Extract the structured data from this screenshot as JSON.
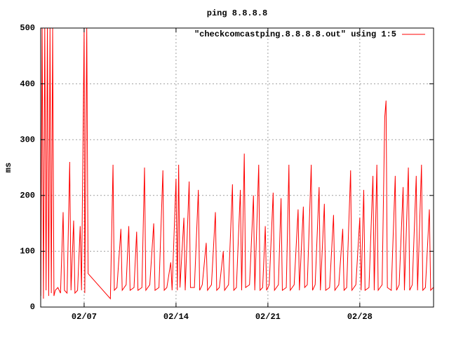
{
  "chart_data": {
    "type": "line",
    "title": "ping 8.8.8.8",
    "y_label": "ms",
    "x": [
      3.7,
      3.8,
      3.9,
      4.0,
      4.1,
      4.2,
      4.3,
      4.4,
      4.5,
      4.6,
      4.7,
      4.8,
      5.0,
      5.2,
      5.4,
      5.5,
      5.7,
      5.9,
      6.0,
      6.2,
      6.3,
      6.5,
      6.7,
      6.8,
      7.0,
      7.05,
      7.2,
      7.3,
      9.0,
      9.2,
      9.3,
      9.5,
      9.8,
      9.9,
      10.2,
      10.4,
      10.5,
      10.8,
      11.0,
      11.1,
      11.4,
      11.6,
      11.7,
      12.0,
      12.3,
      12.4,
      12.7,
      13.0,
      13.1,
      13.3,
      13.6,
      13.7,
      14.0,
      14.1,
      14.2,
      14.3,
      14.6,
      14.7,
      15.0,
      15.1,
      15.4,
      15.7,
      15.8,
      16.0,
      16.3,
      16.4,
      16.7,
      17.0,
      17.1,
      17.3,
      17.6,
      17.7,
      18.0,
      18.3,
      18.4,
      18.6,
      18.9,
      19.0,
      19.2,
      19.3,
      19.6,
      19.9,
      20.0,
      20.3,
      20.4,
      20.6,
      20.8,
      20.9,
      21.1,
      21.4,
      21.5,
      21.8,
      22.0,
      22.1,
      22.4,
      22.6,
      22.7,
      23.0,
      23.3,
      23.4,
      23.7,
      23.8,
      24.0,
      24.3,
      24.4,
      24.6,
      24.9,
      25.0,
      25.3,
      25.4,
      25.7,
      26.0,
      26.1,
      26.4,
      26.7,
      26.8,
      27.0,
      27.3,
      27.4,
      27.7,
      28.0,
      28.1,
      28.3,
      28.4,
      28.7,
      29.0,
      29.1,
      29.3,
      29.4,
      29.7,
      29.9,
      30.0,
      30.1,
      30.4,
      30.7,
      30.8,
      31.0,
      31.3,
      31.4,
      31.7,
      31.8,
      32.0,
      32.3,
      32.4,
      32.7,
      32.8,
      33.0,
      33.3,
      33.4,
      33.6
    ],
    "series": [
      {
        "name": "\"checkcomcastping.8.8.8.8.out\" using 1:5",
        "color": "#ff0000",
        "values": [
          20,
          500,
          15,
          500,
          30,
          500,
          20,
          500,
          25,
          500,
          20,
          30,
          35,
          25,
          170,
          30,
          25,
          260,
          30,
          155,
          25,
          30,
          145,
          30,
          500,
          25,
          500,
          60,
          15,
          255,
          30,
          35,
          140,
          30,
          40,
          145,
          30,
          35,
          135,
          30,
          35,
          250,
          30,
          40,
          150,
          30,
          35,
          245,
          30,
          35,
          80,
          30,
          230,
          30,
          255,
          35,
          160,
          30,
          225,
          35,
          35,
          210,
          30,
          40,
          115,
          30,
          40,
          170,
          30,
          35,
          100,
          30,
          40,
          220,
          30,
          35,
          210,
          30,
          275,
          35,
          40,
          200,
          30,
          255,
          30,
          35,
          145,
          30,
          40,
          205,
          30,
          40,
          195,
          30,
          35,
          255,
          30,
          40,
          175,
          30,
          180,
          35,
          40,
          255,
          30,
          40,
          215,
          30,
          185,
          30,
          35,
          165,
          30,
          40,
          140,
          30,
          35,
          245,
          30,
          40,
          160,
          30,
          210,
          30,
          35,
          235,
          30,
          255,
          30,
          40,
          340,
          370,
          35,
          30,
          235,
          30,
          40,
          215,
          30,
          250,
          30,
          40,
          235,
          30,
          255,
          30,
          35,
          175,
          30,
          35
        ]
      }
    ],
    "xlim": [
      3.69,
      33.62
    ],
    "xticks": [
      {
        "value": 7,
        "label": "02/07"
      },
      {
        "value": 14,
        "label": "02/14"
      },
      {
        "value": 21,
        "label": "02/21"
      },
      {
        "value": 28,
        "label": "02/28"
      }
    ],
    "ylim": [
      0,
      500
    ],
    "yticks": [
      0,
      100,
      200,
      300,
      400,
      500
    ],
    "grid": true,
    "legend": "top-right"
  }
}
